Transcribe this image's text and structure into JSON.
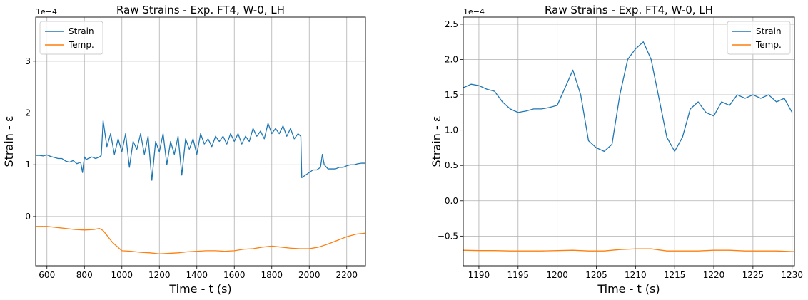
{
  "colors": {
    "strain": "#1f77b4",
    "temp": "#ff7f0e",
    "grid": "#b0b0b0"
  },
  "chart_data": [
    {
      "type": "line",
      "title": "Raw Strains - Exp. FT4, W-0, LH",
      "xlabel": "Time - t (s)",
      "ylabel": "Strain - ε",
      "y_offset_label": "1e−4",
      "xlim": [
        540,
        2300
      ],
      "ylim": [
        -0.95,
        3.85
      ],
      "xticks": [
        600,
        800,
        1000,
        1200,
        1400,
        1600,
        1800,
        2000,
        2200
      ],
      "xtick_labels": [
        "600",
        "800",
        "1000",
        "1200",
        "1400",
        "1600",
        "1800",
        "2000",
        "2200"
      ],
      "yticks": [
        0,
        1,
        2,
        3
      ],
      "ytick_labels": [
        "0",
        "1",
        "2",
        "3"
      ],
      "grid": true,
      "legend_position": "top-left",
      "series": [
        {
          "name": "Strain",
          "color": "#1f77b4",
          "x": [
            540,
            560,
            580,
            600,
            620,
            640,
            660,
            680,
            700,
            720,
            740,
            760,
            780,
            790,
            800,
            810,
            820,
            840,
            860,
            880,
            890,
            900,
            920,
            940,
            960,
            980,
            1000,
            1020,
            1040,
            1060,
            1080,
            1100,
            1120,
            1140,
            1160,
            1180,
            1200,
            1220,
            1240,
            1260,
            1280,
            1300,
            1320,
            1340,
            1360,
            1380,
            1400,
            1420,
            1440,
            1460,
            1480,
            1500,
            1520,
            1540,
            1560,
            1580,
            1600,
            1620,
            1640,
            1660,
            1680,
            1700,
            1720,
            1740,
            1760,
            1780,
            1800,
            1820,
            1840,
            1860,
            1880,
            1900,
            1920,
            1940,
            1955,
            1960,
            1980,
            2000,
            2020,
            2040,
            2060,
            2070,
            2080,
            2100,
            2120,
            2140,
            2160,
            2180,
            2200,
            2220,
            2240,
            2260,
            2280,
            2300
          ],
          "y": [
            1.18,
            1.18,
            1.17,
            1.19,
            1.16,
            1.14,
            1.12,
            1.12,
            1.07,
            1.05,
            1.08,
            1.02,
            1.05,
            0.85,
            1.15,
            1.1,
            1.12,
            1.15,
            1.12,
            1.15,
            1.18,
            1.85,
            1.35,
            1.6,
            1.2,
            1.5,
            1.25,
            1.6,
            0.95,
            1.45,
            1.3,
            1.6,
            1.2,
            1.55,
            0.7,
            1.45,
            1.25,
            1.6,
            1.0,
            1.45,
            1.2,
            1.55,
            0.8,
            1.5,
            1.3,
            1.5,
            1.2,
            1.6,
            1.4,
            1.5,
            1.35,
            1.55,
            1.45,
            1.55,
            1.4,
            1.6,
            1.45,
            1.6,
            1.4,
            1.55,
            1.45,
            1.7,
            1.55,
            1.65,
            1.5,
            1.8,
            1.6,
            1.7,
            1.6,
            1.75,
            1.55,
            1.7,
            1.5,
            1.6,
            1.55,
            0.75,
            0.8,
            0.85,
            0.9,
            0.9,
            0.95,
            1.2,
            1.0,
            0.92,
            0.92,
            0.92,
            0.95,
            0.95,
            0.98,
            1.0,
            1.0,
            1.02,
            1.03,
            1.03
          ]
        },
        {
          "name": "Temp.",
          "color": "#ff7f0e",
          "x": [
            540,
            600,
            650,
            700,
            750,
            800,
            850,
            880,
            900,
            950,
            1000,
            1050,
            1100,
            1150,
            1200,
            1250,
            1300,
            1350,
            1400,
            1450,
            1500,
            1550,
            1600,
            1650,
            1700,
            1750,
            1800,
            1850,
            1900,
            1950,
            2000,
            2050,
            2100,
            2150,
            2200,
            2250,
            2300
          ],
          "y": [
            -0.19,
            -0.19,
            -0.21,
            -0.23,
            -0.25,
            -0.26,
            -0.25,
            -0.23,
            -0.27,
            -0.5,
            -0.66,
            -0.67,
            -0.69,
            -0.7,
            -0.72,
            -0.71,
            -0.7,
            -0.68,
            -0.67,
            -0.66,
            -0.66,
            -0.67,
            -0.66,
            -0.63,
            -0.62,
            -0.59,
            -0.57,
            -0.59,
            -0.61,
            -0.62,
            -0.62,
            -0.59,
            -0.53,
            -0.46,
            -0.39,
            -0.34,
            -0.32
          ]
        }
      ]
    },
    {
      "type": "line",
      "title": "Raw Strains - Exp. FT4, W-0, LH",
      "xlabel": "Time - t (s)",
      "ylabel": "Strain - ε",
      "y_offset_label": "1e−4",
      "xlim": [
        1188,
        1230.3
      ],
      "ylim": [
        -0.92,
        2.6
      ],
      "xticks": [
        1190,
        1195,
        1200,
        1205,
        1210,
        1215,
        1220,
        1225,
        1230
      ],
      "xtick_labels": [
        "1190",
        "1195",
        "1200",
        "1205",
        "1210",
        "1215",
        "1220",
        "1225",
        "1230"
      ],
      "yticks": [
        -0.5,
        0.0,
        0.5,
        1.0,
        1.5,
        2.0,
        2.5
      ],
      "ytick_labels": [
        "−0.5",
        "0.0",
        "0.5",
        "1.0",
        "1.5",
        "2.0",
        "2.5"
      ],
      "grid": true,
      "legend_position": "top-right",
      "series": [
        {
          "name": "Strain",
          "color": "#1f77b4",
          "x": [
            1188,
            1189,
            1190,
            1191,
            1192,
            1193,
            1194,
            1195,
            1196,
            1197,
            1198,
            1199,
            1200,
            1201,
            1202,
            1203,
            1204,
            1205,
            1206,
            1207,
            1208,
            1209,
            1210,
            1211,
            1212,
            1213,
            1214,
            1215,
            1216,
            1217,
            1218,
            1219,
            1220,
            1221,
            1222,
            1223,
            1224,
            1225,
            1226,
            1227,
            1228,
            1229,
            1230
          ],
          "y": [
            1.6,
            1.65,
            1.63,
            1.58,
            1.55,
            1.4,
            1.3,
            1.25,
            1.27,
            1.3,
            1.3,
            1.32,
            1.35,
            1.6,
            1.85,
            1.5,
            0.85,
            0.75,
            0.7,
            0.8,
            1.5,
            2.0,
            2.15,
            2.25,
            2.0,
            1.45,
            0.9,
            0.7,
            0.9,
            1.3,
            1.4,
            1.25,
            1.2,
            1.4,
            1.35,
            1.5,
            1.45,
            1.5,
            1.45,
            1.5,
            1.4,
            1.45,
            1.25
          ]
        },
        {
          "name": "Temp.",
          "color": "#ff7f0e",
          "x": [
            1188,
            1190,
            1192,
            1194,
            1196,
            1198,
            1200,
            1202,
            1204,
            1206,
            1208,
            1210,
            1212,
            1214,
            1216,
            1218,
            1220,
            1222,
            1224,
            1226,
            1228,
            1230.3
          ],
          "y": [
            -0.7,
            -0.705,
            -0.705,
            -0.71,
            -0.71,
            -0.71,
            -0.705,
            -0.7,
            -0.71,
            -0.71,
            -0.69,
            -0.68,
            -0.68,
            -0.71,
            -0.71,
            -0.71,
            -0.7,
            -0.7,
            -0.71,
            -0.71,
            -0.71,
            -0.72
          ]
        }
      ]
    }
  ]
}
